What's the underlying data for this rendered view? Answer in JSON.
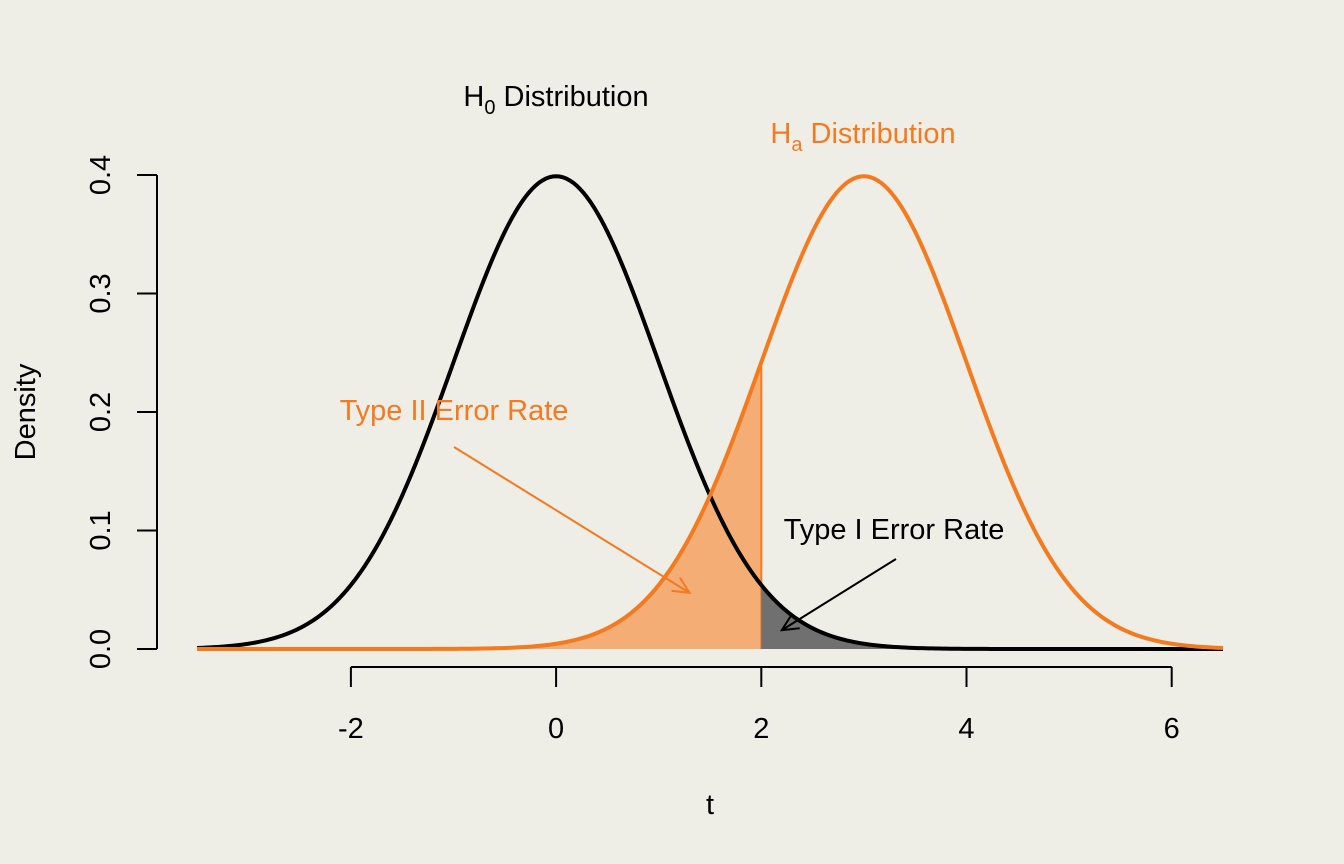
{
  "chart_data": {
    "type": "line",
    "xlabel": "t",
    "ylabel": "Density",
    "xlim": [
      -3.5,
      6.5
    ],
    "ylim": [
      0,
      0.4
    ],
    "xticks": [
      "-2",
      "0",
      "2",
      "4",
      "6"
    ],
    "xtick_values": [
      -2,
      0,
      2,
      4,
      6
    ],
    "yticks": [
      "0.0",
      "0.1",
      "0.2",
      "0.3",
      "0.4"
    ],
    "ytick_values": [
      0,
      0.1,
      0.2,
      0.3,
      0.4
    ],
    "critical_value": 2,
    "series": [
      {
        "name_main": "H",
        "name_sub": "0",
        "name_rest": " Distribution",
        "distribution": "normal",
        "mean": 0,
        "sd": 1,
        "color": "#000000"
      },
      {
        "name_main": "H",
        "name_sub": "a",
        "name_rest": " Distribution",
        "distribution": "normal",
        "mean": 3,
        "sd": 1,
        "color": "#f47a1f"
      }
    ],
    "shaded_regions": [
      {
        "label": "Type II Error Rate",
        "under": "Ha",
        "x_from": -3.5,
        "x_to": 2,
        "fill": "#f5ad76",
        "text_color": "#f47a1f",
        "arrow_to": [
          1.3,
          0.05
        ]
      },
      {
        "label": "Type I Error Rate",
        "under": "H0",
        "x_from": 2,
        "x_to": 6.5,
        "fill": "#707070",
        "text_color": "#000000",
        "arrow_to": [
          2.2,
          0.01
        ]
      }
    ],
    "grid": false
  }
}
